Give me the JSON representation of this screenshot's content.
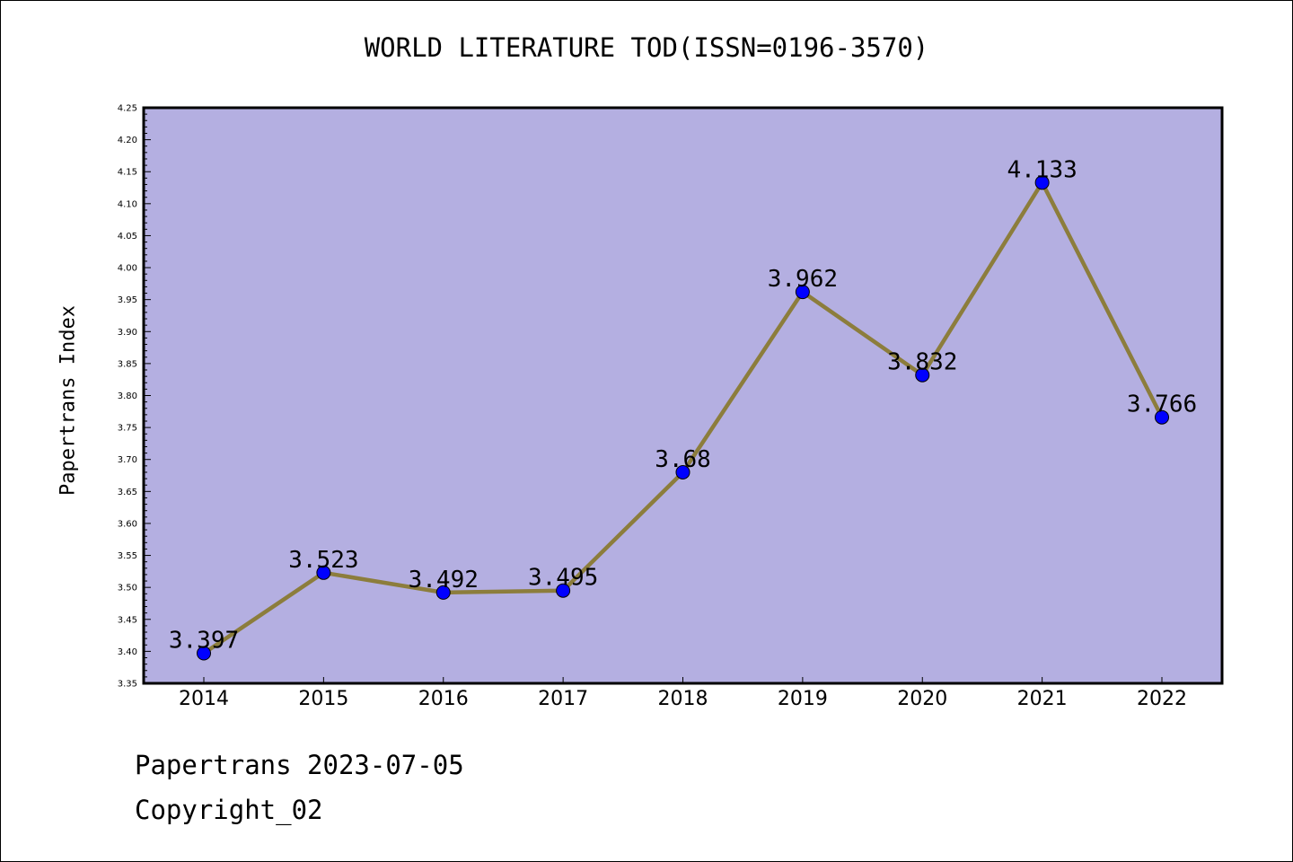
{
  "title": "WORLD LITERATURE TOD(ISSN=0196-3570)",
  "ylabel": "Papertrans Index",
  "footer": {
    "date_line": "Papertrans 2023-07-05",
    "copyright_line": "Copyright_02"
  },
  "colors": {
    "plot_background": "#b4afe1",
    "line": "#8c7d3c",
    "marker": "#0000ff",
    "axis": "#000000"
  },
  "chart_data": {
    "type": "line",
    "title": "WORLD LITERATURE TOD(ISSN=0196-3570)",
    "xlabel": "",
    "ylabel": "Papertrans Index",
    "categories": [
      "2014",
      "2015",
      "2016",
      "2017",
      "2018",
      "2019",
      "2020",
      "2021",
      "2022"
    ],
    "values": [
      3.397,
      3.523,
      3.492,
      3.495,
      3.68,
      3.962,
      3.832,
      4.133,
      3.766
    ],
    "data_labels": [
      "3.397",
      "3.523",
      "3.492",
      "3.495",
      "3.68",
      "3.962",
      "3.832",
      "4.133",
      "3.766"
    ],
    "ylim": [
      3.35,
      4.25
    ],
    "yticks": [
      "3.35",
      "3.40",
      "3.45",
      "3.50",
      "3.55",
      "3.60",
      "3.65",
      "3.70",
      "3.75",
      "3.80",
      "3.85",
      "3.90",
      "3.95",
      "4.00",
      "4.05",
      "4.10",
      "4.15",
      "4.20",
      "4.25"
    ],
    "grid": false,
    "legend": "none"
  }
}
